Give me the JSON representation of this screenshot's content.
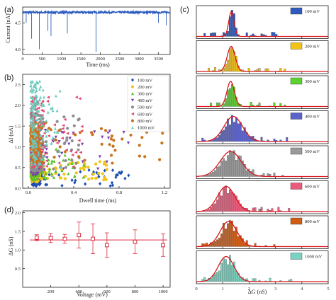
{
  "chart_data": [
    {
      "panel": "(a)",
      "type": "line",
      "xlabel": "Time (ms)",
      "ylabel": "Current (nA)",
      "xlim": [
        0,
        3800
      ],
      "ylim": [
        3.9,
        4.8
      ],
      "xticks": [
        "0",
        "500",
        "1000",
        "1500",
        "2000",
        "2500",
        "3000",
        "3500"
      ],
      "yticks": [
        "4.0",
        "4.5"
      ],
      "baseline": 4.7,
      "events": [
        {
          "t": 90,
          "depth": 4.5
        },
        {
          "t": 230,
          "depth": 4.2
        },
        {
          "t": 430,
          "depth": 4.0
        },
        {
          "t": 650,
          "depth": 4.35
        },
        {
          "t": 730,
          "depth": 4.25
        },
        {
          "t": 1150,
          "depth": 4.3
        },
        {
          "t": 1890,
          "depth": 3.95
        },
        {
          "t": 3500,
          "depth": 4.5
        },
        {
          "t": 3700,
          "depth": 4.45
        }
      ],
      "color": "#2b5bbf"
    },
    {
      "panel": "(b)",
      "type": "scatter",
      "xlabel": "Dwell time (ms)",
      "ylabel": "ΔI (nA)",
      "xlim": [
        -0.05,
        1.25
      ],
      "ylim": [
        0,
        2.75
      ],
      "xticks": [
        "0.0",
        "0.4",
        "0.8",
        "1.2"
      ],
      "yticks": [
        "0.0",
        "0.5",
        "1.0",
        "1.5",
        "2.0",
        "2.5"
      ],
      "legend_position": "top-right",
      "series": [
        {
          "name": "100 mV",
          "color": "#1f4fb4",
          "marker": "diamond",
          "dwell_range": [
            0.03,
            0.9
          ],
          "amp_range": [
            0.05,
            0.45
          ]
        },
        {
          "name": "200 mV",
          "color": "#f0c418",
          "marker": "circle",
          "dwell_range": [
            0.02,
            0.7
          ],
          "amp_range": [
            0.15,
            0.65
          ]
        },
        {
          "name": "300 mV",
          "color": "#58c324",
          "marker": "triangle-up",
          "dwell_range": [
            0.02,
            0.5
          ],
          "amp_range": [
            0.2,
            0.95
          ]
        },
        {
          "name": "400 mV",
          "color": "#7b3fb6",
          "marker": "triangle-down",
          "dwell_range": [
            0.02,
            0.9
          ],
          "amp_range": [
            0.3,
            1.4
          ]
        },
        {
          "name": "500 mV",
          "color": "#8e8e8e",
          "marker": "hexagon",
          "dwell_range": [
            0.02,
            0.45
          ],
          "amp_range": [
            0.4,
            1.8
          ]
        },
        {
          "name": "600 mV",
          "color": "#e8456a",
          "marker": "triangle-left",
          "dwell_range": [
            0.02,
            0.5
          ],
          "amp_range": [
            0.5,
            2.2
          ]
        },
        {
          "name": "800 mV",
          "color": "#c8741c",
          "marker": "hexagon",
          "dwell_range": [
            0.02,
            1.2
          ],
          "amp_range": [
            0.6,
            1.6
          ]
        },
        {
          "name": "1000 mV",
          "color": "#6ec9bd",
          "marker": "star",
          "dwell_range": [
            0.02,
            0.3
          ],
          "amp_range": [
            0.5,
            2.6
          ]
        }
      ]
    },
    {
      "panel": "(c)",
      "type": "bar",
      "xlabel": "ΔG (nS)",
      "xlim": [
        0,
        5
      ],
      "xticks": [
        "0",
        "1",
        "2",
        "3",
        "4",
        "5"
      ],
      "fit_color": "#d8171d",
      "histograms": [
        {
          "name": "100 mV",
          "color": "#2e5bbd",
          "mean": 1.33,
          "sigma": 0.1
        },
        {
          "name": "200 mV",
          "color": "#f2c316",
          "mean": 1.32,
          "sigma": 0.15
        },
        {
          "name": "300 mV",
          "color": "#5bd22e",
          "mean": 1.3,
          "sigma": 0.14
        },
        {
          "name": "400 mV",
          "color": "#5b62c9",
          "mean": 1.4,
          "sigma": 0.35
        },
        {
          "name": "500 mV",
          "color": "#9a9a9a",
          "mean": 1.3,
          "sigma": 0.4
        },
        {
          "name": "600 mV",
          "color": "#ec5a7c",
          "mean": 1.13,
          "sigma": 0.33
        },
        {
          "name": "800 mV",
          "color": "#cf5d15",
          "mean": 1.22,
          "sigma": 0.32
        },
        {
          "name": "1000 mV",
          "color": "#79d3c0",
          "mean": 1.13,
          "sigma": 0.3
        }
      ]
    },
    {
      "panel": "(d)",
      "type": "scatter",
      "xlabel": "Voltage (mV)",
      "ylabel": "ΔG (nS)",
      "xlim": [
        0,
        1050
      ],
      "ylim": [
        0.0,
        2.05
      ],
      "xticks": [
        "200",
        "400",
        "600",
        "800",
        "1000"
      ],
      "yticks": [
        "0.5",
        "1.0",
        "1.5",
        "2.0"
      ],
      "color": "#d62a3d",
      "mean_line": 1.27,
      "points": [
        {
          "x": 100,
          "y": 1.33,
          "err": 0.08
        },
        {
          "x": 200,
          "y": 1.32,
          "err": 0.12
        },
        {
          "x": 300,
          "y": 1.3,
          "err": 0.12
        },
        {
          "x": 400,
          "y": 1.4,
          "err": 0.35
        },
        {
          "x": 500,
          "y": 1.3,
          "err": 0.4
        },
        {
          "x": 600,
          "y": 1.13,
          "err": 0.33
        },
        {
          "x": 800,
          "y": 1.22,
          "err": 0.32
        },
        {
          "x": 1000,
          "y": 1.13,
          "err": 0.3
        }
      ]
    }
  ]
}
